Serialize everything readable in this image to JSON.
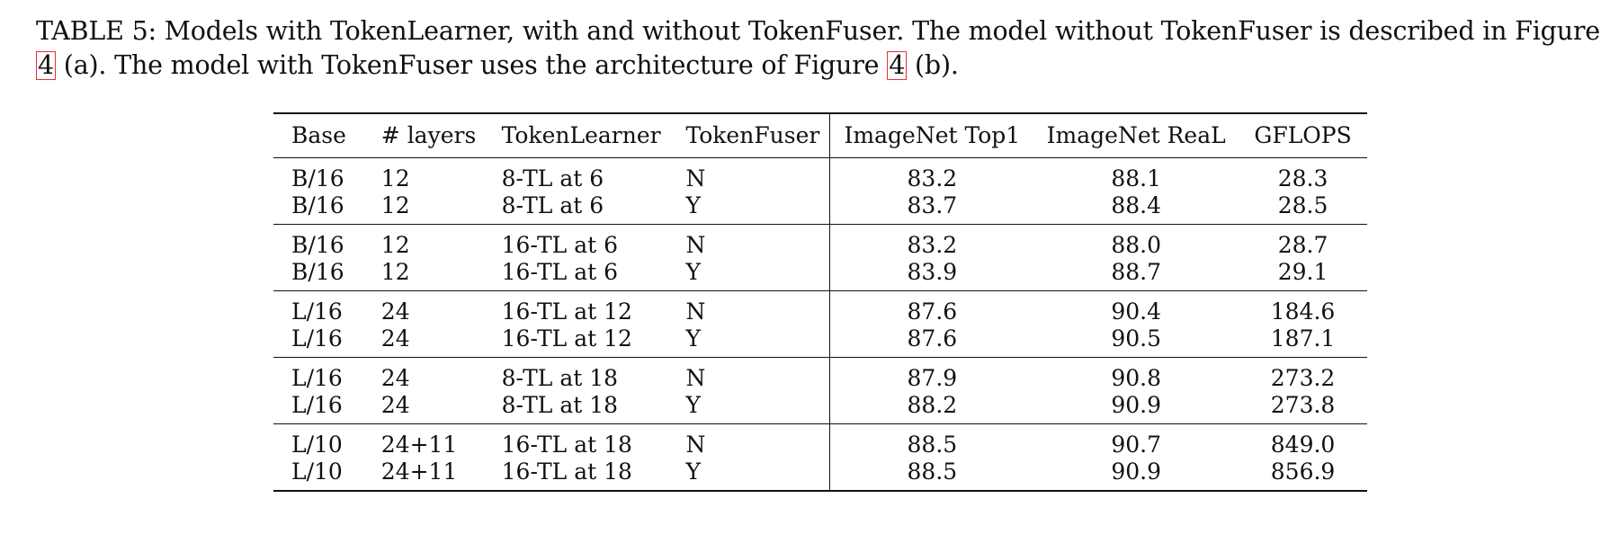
{
  "caption": {
    "text_before_ref1": "TABLE 5: Models with TokenLearner, with and without TokenFuser. The model without TokenFuser is described in Figure ",
    "ref1": "4",
    "text_between": " (a). The model with TokenFuser uses the architecture of Figure ",
    "ref2": "4",
    "text_after_ref2": " (b)."
  },
  "table": {
    "headers": [
      "Base",
      "# layers",
      "TokenLearner",
      "TokenFuser",
      "ImageNet Top1",
      "ImageNet ReaL",
      "GFLOPS"
    ],
    "groups": [
      [
        [
          "B/16",
          "12",
          "8-TL at 6",
          "N",
          "83.2",
          "88.1",
          "28.3"
        ],
        [
          "B/16",
          "12",
          "8-TL at 6",
          "Y",
          "83.7",
          "88.4",
          "28.5"
        ]
      ],
      [
        [
          "B/16",
          "12",
          "16-TL at 6",
          "N",
          "83.2",
          "88.0",
          "28.7"
        ],
        [
          "B/16",
          "12",
          "16-TL at 6",
          "Y",
          "83.9",
          "88.7",
          "29.1"
        ]
      ],
      [
        [
          "L/16",
          "24",
          "16-TL at 12",
          "N",
          "87.6",
          "90.4",
          "184.6"
        ],
        [
          "L/16",
          "24",
          "16-TL at 12",
          "Y",
          "87.6",
          "90.5",
          "187.1"
        ]
      ],
      [
        [
          "L/16",
          "24",
          "8-TL at 18",
          "N",
          "87.9",
          "90.8",
          "273.2"
        ],
        [
          "L/16",
          "24",
          "8-TL at 18",
          "Y",
          "88.2",
          "90.9",
          "273.8"
        ]
      ],
      [
        [
          "L/10",
          "24+11",
          "16-TL at 18",
          "N",
          "88.5",
          "90.7",
          "849.0"
        ],
        [
          "L/10",
          "24+11",
          "16-TL at 18",
          "Y",
          "88.5",
          "90.9",
          "856.9"
        ]
      ]
    ]
  }
}
